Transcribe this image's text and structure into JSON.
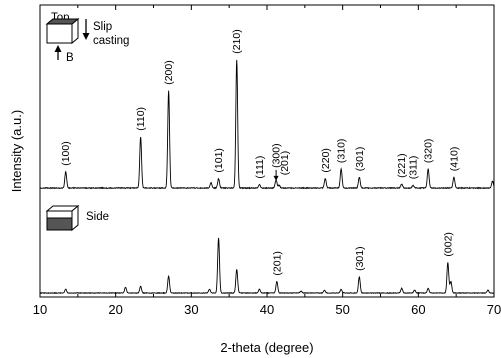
{
  "chart_data": {
    "type": "line",
    "title": "",
    "xlabel": "2-theta (degree)",
    "ylabel": "Intensity (a.u.)",
    "xlim": [
      10,
      70
    ],
    "x_ticks": [
      10,
      20,
      30,
      40,
      50,
      60,
      70
    ],
    "grid": false,
    "legend": "none",
    "line_color": "#000000",
    "series": [
      {
        "inset_text": [
          "Top",
          "Slip",
          "casting",
          "B"
        ],
        "peaks": [
          {
            "x": 13.4,
            "height": 0.12,
            "label": "(100)"
          },
          {
            "x": 23.3,
            "height": 0.38,
            "label": "(110)"
          },
          {
            "x": 27.0,
            "height": 0.72,
            "label": "(200)"
          },
          {
            "x": 32.6,
            "height": 0.04
          },
          {
            "x": 33.6,
            "height": 0.07,
            "label": "(101)"
          },
          {
            "x": 36.0,
            "height": 0.95,
            "label": "(210)"
          },
          {
            "x": 39.0,
            "height": 0.025,
            "label": "(111)"
          },
          {
            "x": 41.2,
            "height": 0.06,
            "label": "(300)"
          },
          {
            "x": 41.6,
            "height": 0.02,
            "label": "(201)"
          },
          {
            "x": 47.7,
            "height": 0.07,
            "label": "(220)"
          },
          {
            "x": 49.8,
            "height": 0.14,
            "label": "(310)"
          },
          {
            "x": 52.2,
            "height": 0.08,
            "label": "(301)"
          },
          {
            "x": 57.8,
            "height": 0.03,
            "label": "(221)"
          },
          {
            "x": 59.3,
            "height": 0.02,
            "label": "(311)"
          },
          {
            "x": 61.3,
            "height": 0.14,
            "label": "(320)"
          },
          {
            "x": 64.7,
            "height": 0.08,
            "label": "(410)"
          },
          {
            "x": 69.8,
            "height": 0.05
          }
        ]
      },
      {
        "inset_text": [
          "Side"
        ],
        "peaks": [
          {
            "x": 13.4,
            "height": 0.04
          },
          {
            "x": 21.3,
            "height": 0.06
          },
          {
            "x": 23.3,
            "height": 0.07
          },
          {
            "x": 27.0,
            "height": 0.18
          },
          {
            "x": 32.4,
            "height": 0.04
          },
          {
            "x": 33.6,
            "height": 0.58
          },
          {
            "x": 36.0,
            "height": 0.25
          },
          {
            "x": 39.0,
            "height": 0.04
          },
          {
            "x": 41.3,
            "height": 0.12,
            "label": "(201)"
          },
          {
            "x": 44.5,
            "height": 0.02
          },
          {
            "x": 47.6,
            "height": 0.03
          },
          {
            "x": 49.8,
            "height": 0.04
          },
          {
            "x": 52.2,
            "height": 0.17,
            "label": "(301)"
          },
          {
            "x": 57.8,
            "height": 0.05
          },
          {
            "x": 59.5,
            "height": 0.03
          },
          {
            "x": 61.3,
            "height": 0.05
          },
          {
            "x": 63.9,
            "height": 0.32,
            "label": "(002)"
          },
          {
            "x": 64.3,
            "height": 0.12
          },
          {
            "x": 69.2,
            "height": 0.03
          }
        ]
      }
    ]
  }
}
